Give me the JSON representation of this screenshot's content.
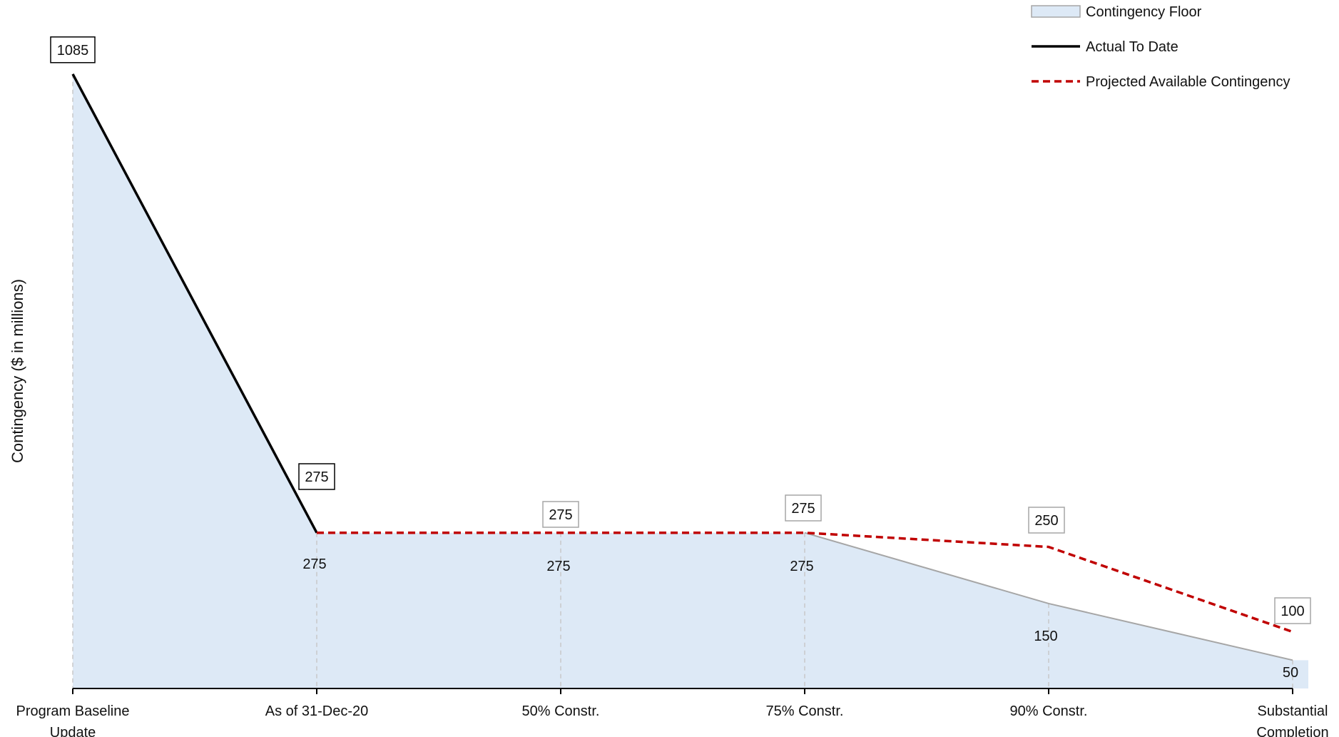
{
  "chart_data": {
    "type": "area",
    "title": "",
    "xlabel": "",
    "ylabel": "Contingency ($ in millions)",
    "ylim": [
      0,
      1120
    ],
    "categories": [
      [
        "Program Baseline",
        "Update"
      ],
      [
        "As of 31-Dec-20"
      ],
      [
        "50% Constr."
      ],
      [
        "75% Constr."
      ],
      [
        "90% Constr."
      ],
      [
        "Substantial",
        "Completion"
      ]
    ],
    "series": [
      {
        "name": "Contingency Floor",
        "kind": "area",
        "color": "#dde9f6",
        "edge_color": "#a6a6a6",
        "values": [
          1085,
          275,
          275,
          275,
          150,
          50
        ],
        "labels": [
          "",
          "275",
          "275",
          "275",
          "150",
          "50"
        ]
      },
      {
        "name": "Actual To Date",
        "kind": "line",
        "color": "#000000",
        "points": [
          [
            0,
            1085
          ],
          [
            1,
            275
          ]
        ],
        "labels": [
          "1085",
          "275"
        ]
      },
      {
        "name": "Projected Available Contingency",
        "kind": "dashed-line",
        "color": "#c00000",
        "points": [
          [
            1,
            275
          ],
          [
            2,
            275
          ],
          [
            3,
            275
          ],
          [
            4,
            250
          ],
          [
            5,
            100
          ]
        ],
        "labels": [
          "",
          "275",
          "275",
          "250",
          "100"
        ]
      }
    ],
    "legend": {
      "position": "top-right",
      "entries": [
        "Contingency Floor",
        "Actual To Date",
        "Projected Available Contingency"
      ]
    },
    "grid": false
  }
}
